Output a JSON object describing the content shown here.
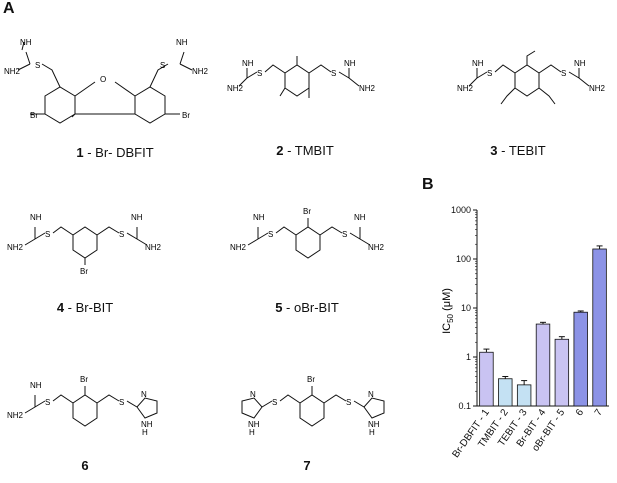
{
  "panel_labels": {
    "a": "A",
    "b": "B"
  },
  "compounds": [
    {
      "number": "1",
      "suffix": " - Br- DBFIT"
    },
    {
      "number": "2",
      "suffix": " - TMBIT"
    },
    {
      "number": "3",
      "suffix": " - TEBIT"
    },
    {
      "number": "4",
      "suffix": " - Br-BIT"
    },
    {
      "number": "5",
      "suffix": " - oBr-BIT"
    },
    {
      "number": "6",
      "suffix": ""
    },
    {
      "number": "7",
      "suffix": ""
    }
  ],
  "atom_text": {
    "NH": "NH",
    "NH2": "NH2",
    "S": "S",
    "Br": "Br",
    "O": "O",
    "N": "N",
    "H": "H"
  },
  "chart_data": {
    "type": "bar",
    "categories": [
      "Br-DBFIT - 1",
      "TMBIT - 2",
      "TEBIT - 3",
      "Br-BIT - 4",
      "oBr-BIT - 5",
      "6",
      "7"
    ],
    "values": [
      1.25,
      0.36,
      0.27,
      4.7,
      2.3,
      8.2,
      160
    ],
    "errors": [
      0.2,
      0.04,
      0.06,
      0.4,
      0.3,
      0.5,
      25
    ],
    "ylabel_main": "IC",
    "ylabel_sub": "50",
    "ylabel_unit": " (μM)",
    "yscale": "log",
    "ylim": [
      0.1,
      1000
    ],
    "ytick_labels": [
      "0.1",
      "1",
      "10",
      "100",
      "1000"
    ],
    "bar_colors": [
      "#c9c3f2",
      "#c4e1f3",
      "#c4e1f3",
      "#c9c3f2",
      "#c9c3f2",
      "#8c93e6",
      "#8c93e6"
    ],
    "grid": false
  }
}
